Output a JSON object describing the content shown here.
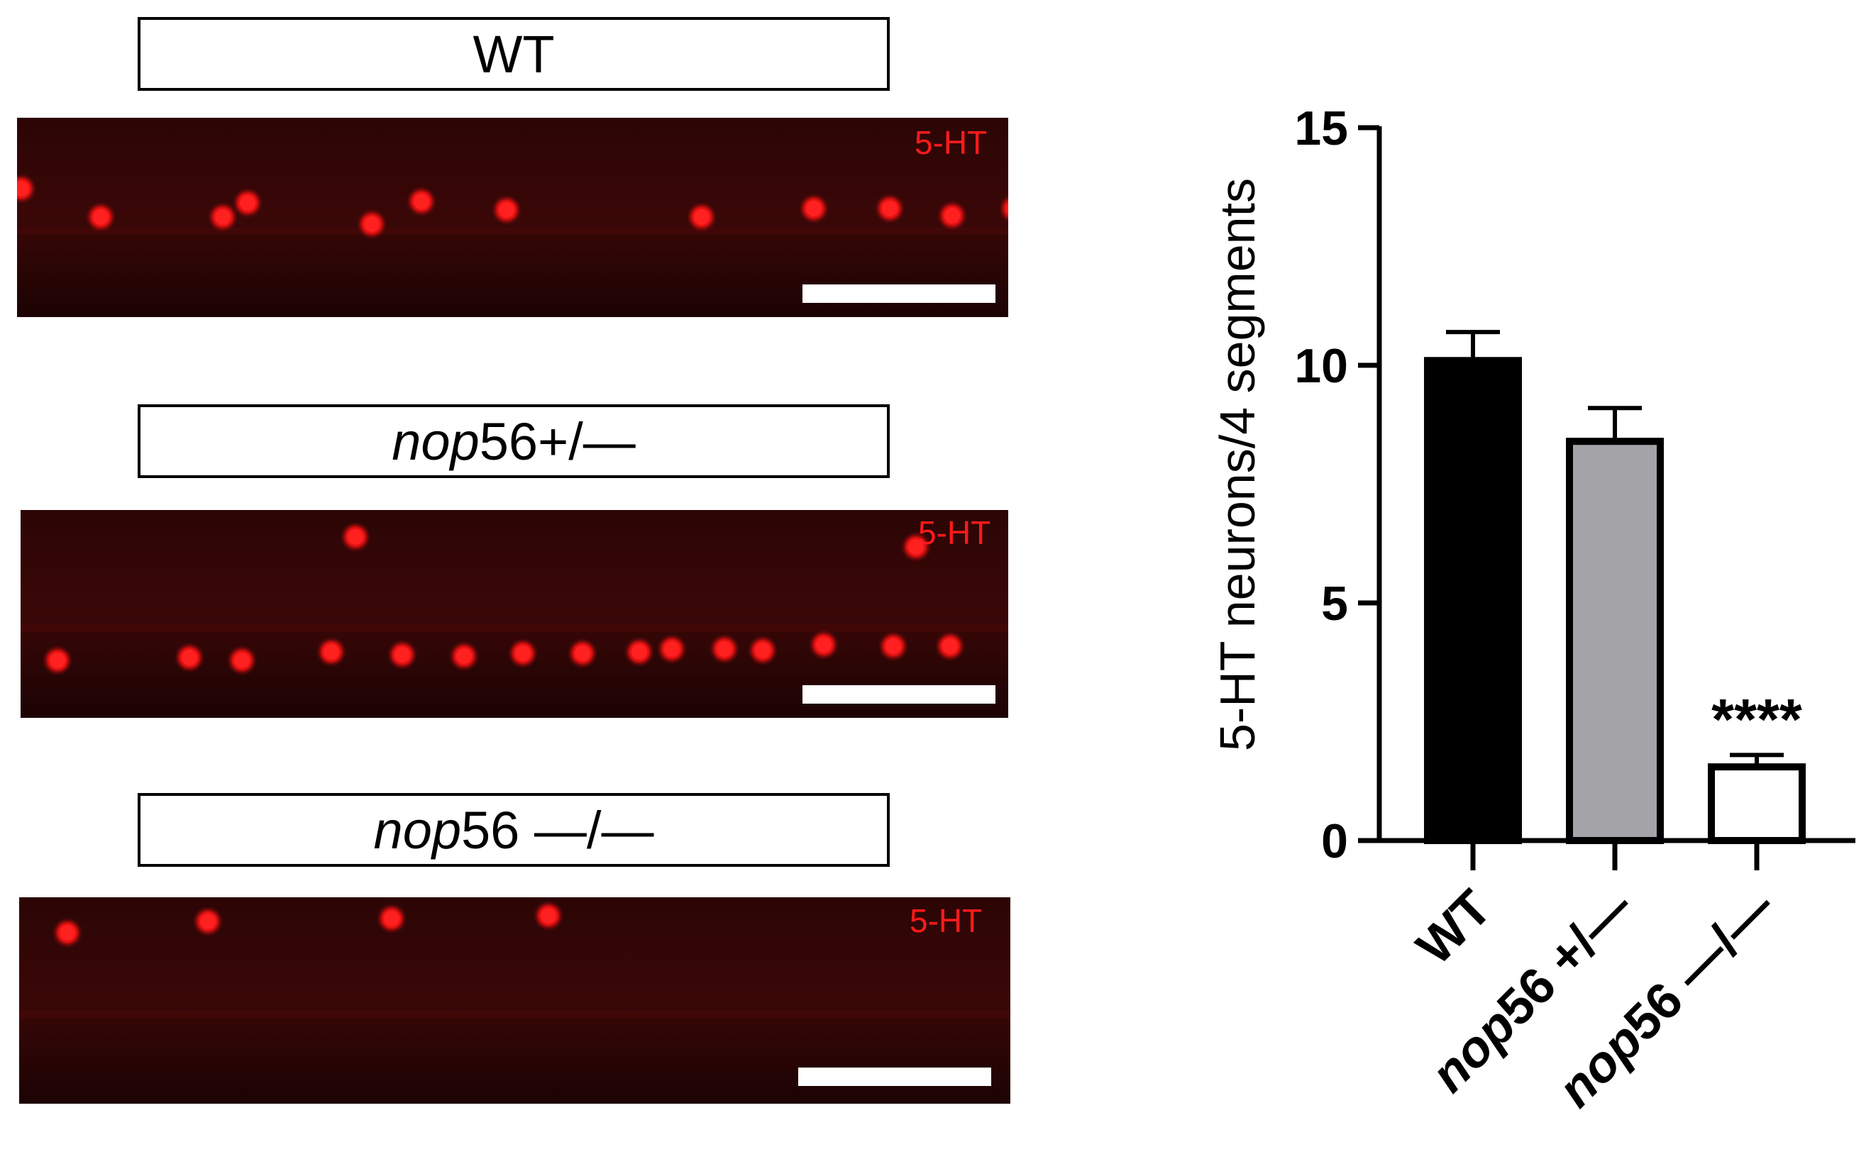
{
  "panels": [
    {
      "genotype_plain": "WT",
      "genotype_italic": "",
      "genotype_suffix": "",
      "stain": "5-HT",
      "cells": [
        [
          118,
          140
        ],
        [
          290,
          140
        ],
        [
          325,
          120
        ],
        [
          500,
          150
        ],
        [
          570,
          118
        ],
        [
          690,
          130
        ],
        [
          965,
          140
        ],
        [
          1123,
          128
        ],
        [
          1230,
          128
        ],
        [
          1318,
          138
        ],
        [
          1405,
          128
        ],
        [
          6,
          100
        ]
      ]
    },
    {
      "genotype_plain": "",
      "genotype_italic": "nop",
      "genotype_suffix": "56+/—",
      "stain": "5-HT",
      "cells": [
        [
          472,
          38
        ],
        [
          1262,
          52
        ],
        [
          52,
          212
        ],
        [
          238,
          208
        ],
        [
          312,
          212
        ],
        [
          438,
          200
        ],
        [
          538,
          204
        ],
        [
          625,
          206
        ],
        [
          708,
          202
        ],
        [
          792,
          202
        ],
        [
          872,
          200
        ],
        [
          918,
          196
        ],
        [
          992,
          196
        ],
        [
          1046,
          198
        ],
        [
          1132,
          190
        ],
        [
          1230,
          192
        ],
        [
          1310,
          192
        ]
      ]
    },
    {
      "genotype_plain": "",
      "genotype_italic": "nop",
      "genotype_suffix": "56 —/—",
      "stain": "5-HT",
      "cells": [
        [
          266,
          34
        ],
        [
          68,
          50
        ],
        [
          525,
          30
        ],
        [
          746,
          26
        ]
      ]
    }
  ],
  "chart_data": {
    "type": "bar",
    "categories": [
      "WT",
      "nop56 +/—",
      "nop56 —/—"
    ],
    "category_parts": [
      [
        "WT",
        ""
      ],
      [
        "nop",
        "56 +/—"
      ],
      [
        "nop",
        "56 —/—"
      ]
    ],
    "values": [
      10.1,
      8.4,
      1.55
    ],
    "errors": [
      0.6,
      0.7,
      0.25
    ],
    "fills": [
      "#000000",
      "#a3a3a8",
      "#ffffff"
    ],
    "annotations": [
      "",
      "",
      "****"
    ],
    "ylabel": "5-HT neurons/4 segments",
    "ylim": [
      0,
      15
    ],
    "yticks": [
      0,
      5,
      10,
      15
    ],
    "grid": false
  }
}
